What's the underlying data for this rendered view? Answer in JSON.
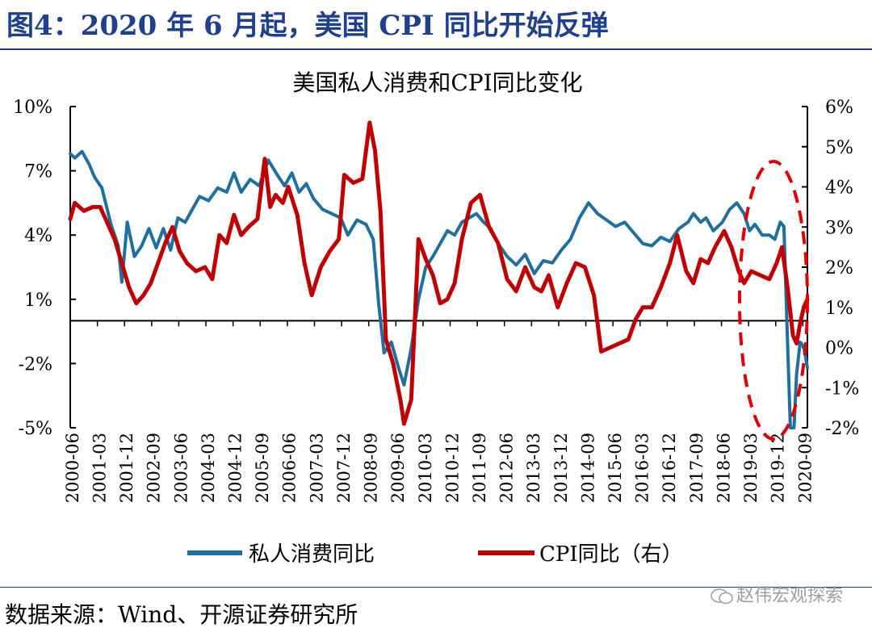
{
  "figure_title": "图4：2020 年 6 月起，美国 CPI 同比开始反弹",
  "source_text": "数据来源：Wind、开源证券研究所",
  "watermark": "赵伟宏观探索",
  "colors": {
    "title": "#1f3f8f",
    "consumption": "#1f6fa0",
    "cpi": "#c00000",
    "highlight": "#e00000"
  },
  "chart_data": {
    "type": "line",
    "title": "美国私人消费和CPI同比变化",
    "left_axis": {
      "ylim": [
        -5,
        10
      ],
      "ticks": [
        "10%",
        "7%",
        "4%",
        "1%",
        "-2%",
        "-5%"
      ],
      "tick_values": [
        10,
        7,
        4,
        1,
        -2,
        -5
      ]
    },
    "right_axis": {
      "ylim": [
        -2,
        6
      ],
      "ticks": [
        "6%",
        "5%",
        "4%",
        "3%",
        "2%",
        "1%",
        "0%",
        "-1%",
        "-2%"
      ],
      "tick_values": [
        6,
        5,
        4,
        3,
        2,
        1,
        0,
        -1,
        -2
      ]
    },
    "x_ticks": [
      "2000-06",
      "2001-03",
      "2001-12",
      "2002-09",
      "2003-06",
      "2004-03",
      "2004-12",
      "2005-09",
      "2006-06",
      "2007-03",
      "2007-12",
      "2008-09",
      "2009-06",
      "2010-03",
      "2010-12",
      "2011-09",
      "2012-06",
      "2013-03",
      "2013-12",
      "2014-09",
      "2015-06",
      "2016-03",
      "2016-12",
      "2017-09",
      "2018-06",
      "2019-03",
      "2019-12",
      "2020-09"
    ],
    "x_range": [
      2000.375,
      2020.75
    ],
    "series": [
      {
        "name": "私人消费同比",
        "axis": "left",
        "points": [
          [
            2000.375,
            7.8
          ],
          [
            2000.5,
            7.6
          ],
          [
            2000.7,
            7.9
          ],
          [
            2000.9,
            7.3
          ],
          [
            2001.05,
            6.7
          ],
          [
            2001.25,
            6.2
          ],
          [
            2001.5,
            4.5
          ],
          [
            2001.7,
            3.5
          ],
          [
            2001.8,
            1.8
          ],
          [
            2001.95,
            4.6
          ],
          [
            2002.15,
            3.0
          ],
          [
            2002.35,
            3.5
          ],
          [
            2002.55,
            4.3
          ],
          [
            2002.75,
            3.4
          ],
          [
            2002.95,
            4.3
          ],
          [
            2003.15,
            3.3
          ],
          [
            2003.35,
            4.8
          ],
          [
            2003.55,
            4.6
          ],
          [
            2003.75,
            5.2
          ],
          [
            2003.95,
            5.8
          ],
          [
            2004.2,
            5.6
          ],
          [
            2004.45,
            6.2
          ],
          [
            2004.7,
            6.0
          ],
          [
            2004.9,
            6.9
          ],
          [
            2005.1,
            6.0
          ],
          [
            2005.35,
            6.6
          ],
          [
            2005.6,
            6.3
          ],
          [
            2005.85,
            7.5
          ],
          [
            2006.1,
            6.8
          ],
          [
            2006.3,
            6.3
          ],
          [
            2006.5,
            6.9
          ],
          [
            2006.7,
            6.0
          ],
          [
            2006.9,
            6.4
          ],
          [
            2007.1,
            5.7
          ],
          [
            2007.35,
            5.2
          ],
          [
            2007.6,
            5.0
          ],
          [
            2007.85,
            4.8
          ],
          [
            2008.05,
            4.0
          ],
          [
            2008.3,
            4.7
          ],
          [
            2008.55,
            4.5
          ],
          [
            2008.75,
            3.8
          ],
          [
            2008.9,
            0.8
          ],
          [
            2009.05,
            -1.5
          ],
          [
            2009.25,
            -1.0
          ],
          [
            2009.45,
            -2.2
          ],
          [
            2009.6,
            -3.0
          ],
          [
            2009.8,
            -1.3
          ],
          [
            2010.0,
            1.0
          ],
          [
            2010.2,
            2.5
          ],
          [
            2010.4,
            3.0
          ],
          [
            2010.6,
            3.6
          ],
          [
            2010.8,
            4.2
          ],
          [
            2011.0,
            4.0
          ],
          [
            2011.2,
            4.6
          ],
          [
            2011.4,
            4.8
          ],
          [
            2011.6,
            5.0
          ],
          [
            2011.8,
            4.6
          ],
          [
            2012.0,
            4.3
          ],
          [
            2012.2,
            3.6
          ],
          [
            2012.45,
            3.0
          ],
          [
            2012.7,
            2.6
          ],
          [
            2012.95,
            3.1
          ],
          [
            2013.2,
            2.2
          ],
          [
            2013.45,
            2.8
          ],
          [
            2013.7,
            2.7
          ],
          [
            2013.95,
            3.3
          ],
          [
            2014.2,
            3.8
          ],
          [
            2014.45,
            4.8
          ],
          [
            2014.7,
            5.5
          ],
          [
            2014.95,
            5.0
          ],
          [
            2015.2,
            4.7
          ],
          [
            2015.45,
            4.4
          ],
          [
            2015.7,
            4.6
          ],
          [
            2015.95,
            4.1
          ],
          [
            2016.2,
            3.6
          ],
          [
            2016.45,
            3.5
          ],
          [
            2016.7,
            3.9
          ],
          [
            2016.95,
            3.7
          ],
          [
            2017.2,
            4.3
          ],
          [
            2017.45,
            4.6
          ],
          [
            2017.6,
            5.0
          ],
          [
            2017.8,
            4.6
          ],
          [
            2017.95,
            4.8
          ],
          [
            2018.15,
            4.2
          ],
          [
            2018.4,
            4.6
          ],
          [
            2018.6,
            5.2
          ],
          [
            2018.8,
            5.5
          ],
          [
            2019.0,
            5.0
          ],
          [
            2019.15,
            4.2
          ],
          [
            2019.3,
            4.5
          ],
          [
            2019.5,
            4.0
          ],
          [
            2019.7,
            4.0
          ],
          [
            2019.85,
            3.8
          ],
          [
            2020.0,
            4.6
          ],
          [
            2020.1,
            4.4
          ],
          [
            2020.2,
            -1.0
          ],
          [
            2020.28,
            -5.0
          ],
          [
            2020.38,
            -5.0
          ],
          [
            2020.45,
            -2.5
          ],
          [
            2020.55,
            -1.0
          ],
          [
            2020.65,
            -1.2
          ],
          [
            2020.75,
            -2.2
          ]
        ]
      },
      {
        "name": "CPI同比（右）",
        "axis": "right",
        "points": [
          [
            2000.375,
            3.2
          ],
          [
            2000.5,
            3.6
          ],
          [
            2000.75,
            3.4
          ],
          [
            2001.0,
            3.5
          ],
          [
            2001.2,
            3.5
          ],
          [
            2001.45,
            3.0
          ],
          [
            2001.6,
            2.7
          ],
          [
            2001.8,
            2.1
          ],
          [
            2002.0,
            1.5
          ],
          [
            2002.2,
            1.1
          ],
          [
            2002.4,
            1.3
          ],
          [
            2002.6,
            1.6
          ],
          [
            2002.8,
            2.1
          ],
          [
            2003.0,
            2.6
          ],
          [
            2003.2,
            3.0
          ],
          [
            2003.4,
            2.4
          ],
          [
            2003.6,
            2.1
          ],
          [
            2003.85,
            1.9
          ],
          [
            2004.1,
            2.0
          ],
          [
            2004.3,
            1.7
          ],
          [
            2004.5,
            2.8
          ],
          [
            2004.7,
            2.6
          ],
          [
            2004.9,
            3.3
          ],
          [
            2005.1,
            2.8
          ],
          [
            2005.3,
            3.0
          ],
          [
            2005.55,
            3.2
          ],
          [
            2005.75,
            4.7
          ],
          [
            2005.9,
            3.5
          ],
          [
            2006.05,
            3.8
          ],
          [
            2006.25,
            3.6
          ],
          [
            2006.4,
            4.0
          ],
          [
            2006.65,
            3.3
          ],
          [
            2006.85,
            2.1
          ],
          [
            2007.05,
            1.3
          ],
          [
            2007.3,
            2.0
          ],
          [
            2007.55,
            2.4
          ],
          [
            2007.8,
            2.7
          ],
          [
            2007.95,
            4.3
          ],
          [
            2008.2,
            4.1
          ],
          [
            2008.45,
            4.2
          ],
          [
            2008.65,
            5.6
          ],
          [
            2008.8,
            4.9
          ],
          [
            2008.95,
            3.4
          ],
          [
            2009.1,
            0.2
          ],
          [
            2009.3,
            -0.4
          ],
          [
            2009.5,
            -1.3
          ],
          [
            2009.6,
            -1.9
          ],
          [
            2009.8,
            -1.3
          ],
          [
            2010.0,
            2.7
          ],
          [
            2010.2,
            2.2
          ],
          [
            2010.4,
            1.8
          ],
          [
            2010.6,
            1.1
          ],
          [
            2010.8,
            1.2
          ],
          [
            2011.0,
            1.6
          ],
          [
            2011.2,
            2.7
          ],
          [
            2011.45,
            3.6
          ],
          [
            2011.7,
            3.8
          ],
          [
            2011.95,
            3.0
          ],
          [
            2012.2,
            2.6
          ],
          [
            2012.45,
            1.7
          ],
          [
            2012.7,
            1.4
          ],
          [
            2012.95,
            2.0
          ],
          [
            2013.2,
            1.5
          ],
          [
            2013.4,
            1.4
          ],
          [
            2013.6,
            1.8
          ],
          [
            2013.85,
            1.0
          ],
          [
            2014.1,
            1.6
          ],
          [
            2014.35,
            2.1
          ],
          [
            2014.6,
            2.0
          ],
          [
            2014.85,
            1.3
          ],
          [
            2015.05,
            -0.1
          ],
          [
            2015.3,
            0.0
          ],
          [
            2015.55,
            0.1
          ],
          [
            2015.8,
            0.2
          ],
          [
            2016.0,
            0.7
          ],
          [
            2016.2,
            1.0
          ],
          [
            2016.45,
            1.0
          ],
          [
            2016.7,
            1.5
          ],
          [
            2016.95,
            2.1
          ],
          [
            2017.15,
            2.8
          ],
          [
            2017.4,
            1.9
          ],
          [
            2017.6,
            1.6
          ],
          [
            2017.8,
            2.2
          ],
          [
            2018.0,
            2.1
          ],
          [
            2018.2,
            2.5
          ],
          [
            2018.45,
            2.9
          ],
          [
            2018.65,
            2.5
          ],
          [
            2018.85,
            1.9
          ],
          [
            2019.0,
            1.6
          ],
          [
            2019.2,
            1.9
          ],
          [
            2019.45,
            1.8
          ],
          [
            2019.7,
            1.7
          ],
          [
            2019.9,
            2.1
          ],
          [
            2020.05,
            2.5
          ],
          [
            2020.2,
            1.5
          ],
          [
            2020.35,
            0.3
          ],
          [
            2020.45,
            0.1
          ],
          [
            2020.55,
            0.6
          ],
          [
            2020.65,
            1.0
          ],
          [
            2020.75,
            1.2
          ]
        ]
      }
    ],
    "legend": [
      "私人消费同比",
      "CPI同比（右）"
    ],
    "legend_position": "bottom",
    "annotation": "red dashed ellipse highlighting 2019–2020 section"
  }
}
